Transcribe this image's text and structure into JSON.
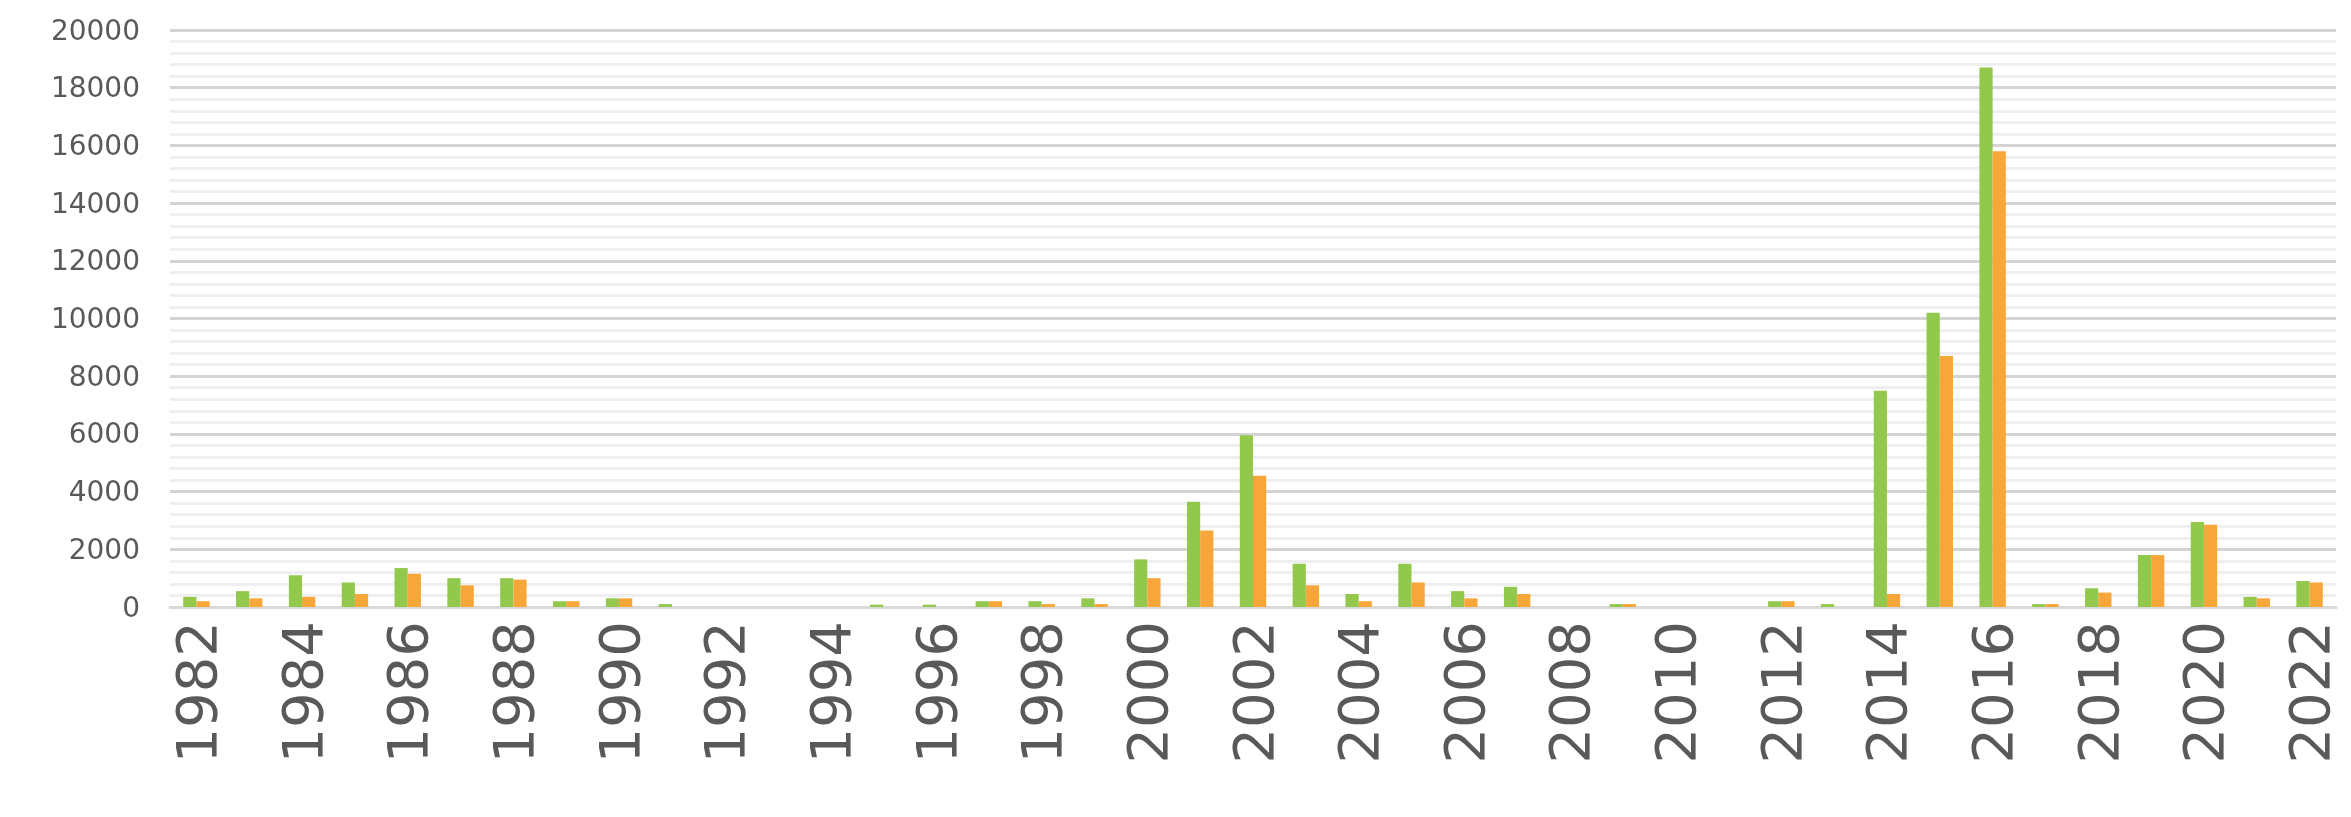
{
  "chart_data": {
    "type": "bar",
    "categories": [
      "1982",
      null,
      "1984",
      null,
      "1986",
      null,
      "1988",
      null,
      "1990",
      null,
      "1992",
      null,
      "1994",
      null,
      "1996",
      null,
      "1998",
      null,
      "2000",
      null,
      "2002",
      null,
      "2004",
      null,
      "2006",
      null,
      "2008",
      null,
      "2010",
      null,
      "2012",
      null,
      "2014",
      null,
      "2016",
      null,
      "2018",
      null,
      "2020",
      null,
      "2022"
    ],
    "series": [
      {
        "color": "#92c84b",
        "values": [
          350,
          550,
          1100,
          850,
          1350,
          1000,
          1000,
          200,
          300,
          100,
          0,
          0,
          0,
          80,
          80,
          200,
          200,
          300,
          1650,
          3650,
          5950,
          1500,
          450,
          1500,
          550,
          700,
          0,
          100,
          0,
          0,
          200,
          100,
          7500,
          10200,
          18700,
          100,
          650,
          1800,
          2950,
          350,
          900
        ]
      },
      {
        "color": "#f7a63a",
        "values": [
          200,
          300,
          350,
          450,
          1150,
          750,
          950,
          200,
          300,
          0,
          0,
          0,
          0,
          0,
          0,
          200,
          100,
          100,
          1000,
          2650,
          4550,
          750,
          200,
          850,
          300,
          450,
          0,
          100,
          0,
          0,
          200,
          0,
          450,
          8700,
          15800,
          100,
          500,
          1800,
          2850,
          300,
          850
        ]
      }
    ],
    "ylim": [
      0,
      20000
    ],
    "yticks": [
      0,
      2000,
      4000,
      6000,
      8000,
      10000,
      12000,
      14000,
      16000,
      18000,
      20000
    ],
    "grid": "y"
  }
}
